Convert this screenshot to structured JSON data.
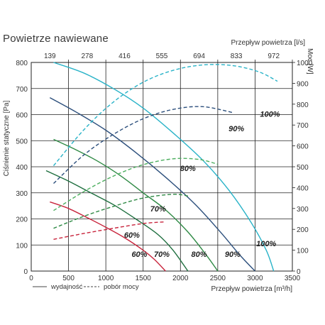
{
  "chart_data": {
    "type": "line",
    "title": "Powietrze nawiewane",
    "xlabel": "Przepływ powietrza [m³/h]",
    "x2label": "Przepływ powietrza [l/s]",
    "ylabel": "Ciśnienie statyczne [Pa]",
    "y2label": "Moc [W]",
    "xlim": [
      0,
      3500
    ],
    "ylim": [
      0,
      800
    ],
    "y2lim": [
      0,
      1000
    ],
    "grid": true,
    "x_ticks": [
      "0",
      "500",
      "1000",
      "1500",
      "2000",
      "2500",
      "3000",
      "3500"
    ],
    "y_ticks": [
      "0",
      "100",
      "200",
      "300",
      "400",
      "500",
      "600",
      "700",
      "800"
    ],
    "y2_ticks": [
      "0",
      "100",
      "200",
      "300",
      "400",
      "500",
      "600",
      "700",
      "800",
      "900",
      "1000"
    ],
    "x2_ticks": [
      {
        "label": "139",
        "x": 500
      },
      {
        "label": "278",
        "x": 1000
      },
      {
        "label": "416",
        "x": 1500
      },
      {
        "label": "555",
        "x": 2000
      },
      {
        "label": "694",
        "x": 2500
      },
      {
        "label": "833",
        "x": 3000
      },
      {
        "label": "972",
        "x": 3500
      }
    ],
    "legend": {
      "placement": "bottom-left",
      "solid": "wydajność",
      "dashed": "pobór mocy"
    },
    "series": [
      {
        "name": "60%",
        "color": "#c8243c",
        "kind": "pressure",
        "points": [
          [
            250,
            265
          ],
          [
            500,
            240
          ],
          [
            750,
            205
          ],
          [
            1000,
            168
          ],
          [
            1250,
            128
          ],
          [
            1500,
            80
          ],
          [
            1650,
            45
          ],
          [
            1800,
            0
          ]
        ],
        "label_x": 1450,
        "label_y": 55
      },
      {
        "name": "70%",
        "color": "#1d6e3e",
        "kind": "pressure",
        "points": [
          [
            200,
            385
          ],
          [
            500,
            345
          ],
          [
            800,
            300
          ],
          [
            1100,
            255
          ],
          [
            1400,
            200
          ],
          [
            1700,
            140
          ],
          [
            1900,
            80
          ],
          [
            2100,
            0
          ]
        ],
        "label_x": 1750,
        "label_y": 55
      },
      {
        "name": "80%",
        "color": "#2f8a45",
        "kind": "pressure",
        "points": [
          [
            300,
            505
          ],
          [
            600,
            465
          ],
          [
            900,
            420
          ],
          [
            1200,
            365
          ],
          [
            1500,
            300
          ],
          [
            1800,
            235
          ],
          [
            2100,
            150
          ],
          [
            2350,
            60
          ],
          [
            2500,
            0
          ]
        ],
        "label_x": 2250,
        "label_y": 55
      },
      {
        "name": "90%",
        "color": "#2c4f7c",
        "kind": "pressure",
        "points": [
          [
            250,
            665
          ],
          [
            600,
            610
          ],
          [
            1000,
            540
          ],
          [
            1400,
            455
          ],
          [
            1800,
            360
          ],
          [
            2200,
            255
          ],
          [
            2550,
            145
          ],
          [
            2800,
            60
          ],
          [
            3000,
            0
          ]
        ],
        "label_x": 2700,
        "label_y": 55
      },
      {
        "name": "100%",
        "color": "#2ab3c8",
        "kind": "pressure",
        "points": [
          [
            300,
            800
          ],
          [
            700,
            760
          ],
          [
            1100,
            700
          ],
          [
            1500,
            625
          ],
          [
            1900,
            530
          ],
          [
            2300,
            425
          ],
          [
            2650,
            310
          ],
          [
            2950,
            185
          ],
          [
            3150,
            80
          ],
          [
            3250,
            0
          ]
        ],
        "label_x": 3150,
        "label_y": 95
      },
      {
        "name": "60%",
        "color": "#c8243c",
        "kind": "power",
        "points": [
          [
            300,
            152
          ],
          [
            700,
            180
          ],
          [
            1100,
            205
          ],
          [
            1500,
            228
          ],
          [
            1800,
            236
          ]
        ],
        "label_x": 1350,
        "label_y": 160
      },
      {
        "name": "70%",
        "color": "#2f8a45",
        "kind": "power",
        "points": [
          [
            300,
            205
          ],
          [
            700,
            262
          ],
          [
            1100,
            310
          ],
          [
            1500,
            350
          ],
          [
            1900,
            368
          ],
          [
            2100,
            360
          ]
        ],
        "label_x": 1700,
        "label_y": 285
      },
      {
        "name": "80%",
        "color": "#4cae5e",
        "kind": "power",
        "points": [
          [
            300,
            290
          ],
          [
            700,
            380
          ],
          [
            1100,
            455
          ],
          [
            1500,
            510
          ],
          [
            1900,
            538
          ],
          [
            2250,
            535
          ],
          [
            2500,
            512
          ]
        ],
        "label_x": 2100,
        "label_y": 480
      },
      {
        "name": "90%",
        "color": "#2c4f7c",
        "kind": "power",
        "points": [
          [
            300,
            420
          ],
          [
            700,
            555
          ],
          [
            1100,
            655
          ],
          [
            1500,
            730
          ],
          [
            1900,
            775
          ],
          [
            2300,
            788
          ],
          [
            2700,
            760
          ]
        ],
        "label_x": 2750,
        "label_y": 670
      },
      {
        "name": "100%",
        "color": "#2ab3c8",
        "kind": "power",
        "points": [
          [
            300,
            505
          ],
          [
            700,
            675
          ],
          [
            1100,
            810
          ],
          [
            1500,
            905
          ],
          [
            1900,
            962
          ],
          [
            2300,
            988
          ],
          [
            2700,
            985
          ],
          [
            3050,
            955
          ],
          [
            3300,
            910
          ]
        ],
        "label_x": 3200,
        "label_y": 740
      }
    ]
  }
}
